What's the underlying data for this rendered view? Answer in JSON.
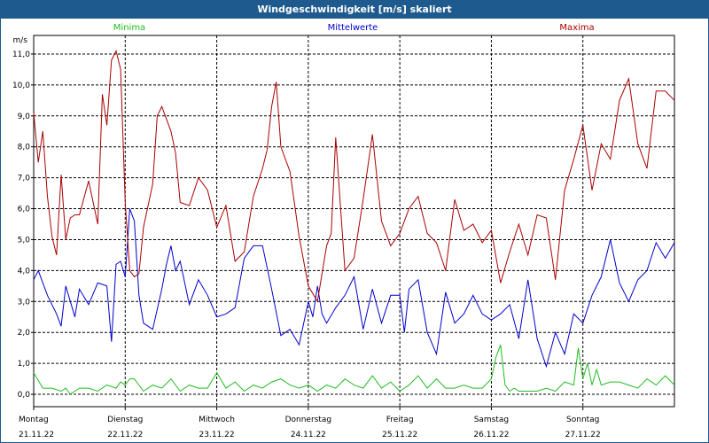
{
  "chart_data": {
    "type": "line",
    "title": "Windgeschwindigkeit [m/s] skaliert",
    "ylabel": "m/s",
    "ylim": [
      -0.4,
      11.6
    ],
    "yticks": [
      "0,0",
      "1,0",
      "2,0",
      "3,0",
      "4,0",
      "5,0",
      "6,0",
      "7,0",
      "8,0",
      "9,0",
      "10,0",
      "11,0"
    ],
    "xlim": [
      0,
      7
    ],
    "days": [
      {
        "name": "Montag",
        "date": "21.11.22"
      },
      {
        "name": "Dienstag",
        "date": "22.11.22"
      },
      {
        "name": "Mittwoch",
        "date": "23.11.22"
      },
      {
        "name": "Donnerstag",
        "date": "24.11.22"
      },
      {
        "name": "Freitag",
        "date": "25.11.22"
      },
      {
        "name": "Samstag",
        "date": "26.11.22"
      },
      {
        "name": "Sonntag",
        "date": "27.11.22"
      }
    ],
    "series": [
      {
        "name": "Minima",
        "color": "#22bb22",
        "x": [
          0,
          0.1,
          0.2,
          0.3,
          0.35,
          0.4,
          0.5,
          0.6,
          0.7,
          0.8,
          0.9,
          0.95,
          1,
          1.05,
          1.1,
          1.2,
          1.3,
          1.4,
          1.5,
          1.6,
          1.7,
          1.8,
          1.9,
          2,
          2.1,
          2.2,
          2.3,
          2.4,
          2.5,
          2.6,
          2.7,
          2.8,
          2.9,
          3,
          3.1,
          3.2,
          3.3,
          3.4,
          3.5,
          3.6,
          3.7,
          3.8,
          3.9,
          4,
          4.1,
          4.2,
          4.3,
          4.4,
          4.5,
          4.6,
          4.7,
          4.8,
          4.9,
          5,
          5.05,
          5.1,
          5.15,
          5.2,
          5.25,
          5.3,
          5.4,
          5.5,
          5.6,
          5.7,
          5.8,
          5.9,
          5.95,
          6,
          6.05,
          6.1,
          6.15,
          6.2,
          6.3,
          6.4,
          6.5,
          6.6,
          6.7,
          6.8,
          6.9,
          7
        ],
        "values": [
          0.7,
          0.2,
          0.2,
          0.1,
          0.2,
          0.0,
          0.2,
          0.2,
          0.1,
          0.3,
          0.2,
          0.4,
          0.3,
          0.5,
          0.5,
          0.1,
          0.3,
          0.2,
          0.5,
          0.1,
          0.3,
          0.2,
          0.2,
          0.7,
          0.2,
          0.4,
          0.1,
          0.3,
          0.2,
          0.4,
          0.5,
          0.3,
          0.2,
          0.3,
          0.1,
          0.3,
          0.2,
          0.5,
          0.3,
          0.2,
          0.6,
          0.2,
          0.4,
          0.1,
          0.3,
          0.6,
          0.2,
          0.5,
          0.2,
          0.2,
          0.3,
          0.2,
          0.2,
          0.5,
          1.2,
          1.6,
          0.3,
          0.1,
          0.2,
          0.1,
          0.1,
          0.1,
          0.2,
          0.1,
          0.4,
          0.3,
          1.5,
          0.5,
          1.0,
          0.3,
          0.8,
          0.3,
          0.4,
          0.4,
          0.3,
          0.2,
          0.5,
          0.3,
          0.6,
          0.3
        ]
      },
      {
        "name": "Mittelwerte",
        "color": "#0000cc",
        "x": [
          0,
          0.05,
          0.15,
          0.25,
          0.3,
          0.35,
          0.45,
          0.5,
          0.6,
          0.7,
          0.8,
          0.85,
          0.9,
          0.95,
          1,
          1.05,
          1.1,
          1.15,
          1.2,
          1.3,
          1.4,
          1.45,
          1.5,
          1.55,
          1.6,
          1.7,
          1.8,
          1.9,
          2,
          2.1,
          2.2,
          2.3,
          2.4,
          2.5,
          2.6,
          2.7,
          2.8,
          2.9,
          3,
          3.05,
          3.1,
          3.15,
          3.2,
          3.3,
          3.4,
          3.5,
          3.6,
          3.7,
          3.8,
          3.9,
          4,
          4.05,
          4.1,
          4.2,
          4.3,
          4.4,
          4.5,
          4.6,
          4.7,
          4.8,
          4.9,
          5,
          5.1,
          5.2,
          5.3,
          5.4,
          5.5,
          5.6,
          5.7,
          5.8,
          5.9,
          6,
          6.1,
          6.2,
          6.3,
          6.4,
          6.5,
          6.6,
          6.7,
          6.8,
          6.9,
          7
        ],
        "values": [
          3.7,
          4.0,
          3.2,
          2.6,
          2.2,
          3.5,
          2.5,
          3.4,
          2.9,
          3.6,
          3.5,
          1.7,
          4.2,
          4.3,
          3.8,
          6.0,
          5.6,
          3.2,
          2.3,
          2.1,
          3.4,
          4.2,
          4.8,
          4.0,
          4.3,
          2.9,
          3.7,
          3.2,
          2.5,
          2.6,
          2.8,
          4.4,
          4.8,
          4.8,
          3.4,
          1.9,
          2.1,
          1.6,
          3.0,
          2.5,
          3.5,
          2.6,
          2.3,
          2.8,
          3.2,
          3.8,
          2.1,
          3.4,
          2.3,
          3.2,
          3.2,
          2.0,
          3.4,
          3.7,
          2.0,
          1.3,
          3.3,
          2.3,
          2.6,
          3.2,
          2.6,
          2.4,
          2.6,
          2.9,
          1.8,
          3.7,
          1.8,
          0.9,
          2.0,
          1.3,
          2.6,
          2.3,
          3.2,
          3.8,
          5.0,
          3.6,
          3.0,
          3.7,
          4.0,
          4.9,
          4.4,
          4.9
        ]
      },
      {
        "name": "Maxima",
        "color": "#aa0000",
        "x": [
          0,
          0.05,
          0.1,
          0.15,
          0.2,
          0.25,
          0.3,
          0.35,
          0.4,
          0.45,
          0.5,
          0.6,
          0.7,
          0.75,
          0.8,
          0.85,
          0.9,
          0.95,
          1,
          1.05,
          1.1,
          1.15,
          1.2,
          1.3,
          1.35,
          1.4,
          1.5,
          1.55,
          1.6,
          1.7,
          1.8,
          1.9,
          2,
          2.1,
          2.2,
          2.3,
          2.4,
          2.5,
          2.55,
          2.6,
          2.65,
          2.7,
          2.8,
          2.9,
          3,
          3.1,
          3.2,
          3.25,
          3.3,
          3.4,
          3.5,
          3.6,
          3.7,
          3.8,
          3.9,
          4,
          4.1,
          4.2,
          4.3,
          4.4,
          4.5,
          4.6,
          4.7,
          4.8,
          4.9,
          5,
          5.1,
          5.2,
          5.3,
          5.4,
          5.5,
          5.6,
          5.7,
          5.8,
          5.9,
          6,
          6.1,
          6.2,
          6.3,
          6.4,
          6.5,
          6.6,
          6.7,
          6.8,
          6.9,
          7
        ],
        "values": [
          9.1,
          7.5,
          8.5,
          6.4,
          5.1,
          4.5,
          7.1,
          5.0,
          5.7,
          5.8,
          5.8,
          6.9,
          5.5,
          9.7,
          8.7,
          10.8,
          11.1,
          10.5,
          6.2,
          4.0,
          3.8,
          3.9,
          5.4,
          6.8,
          9.0,
          9.3,
          8.5,
          7.8,
          6.2,
          6.1,
          7.0,
          6.6,
          5.4,
          6.1,
          4.3,
          4.6,
          6.4,
          7.3,
          7.9,
          9.3,
          10.1,
          8.0,
          7.2,
          5.1,
          3.5,
          3.0,
          4.8,
          5.2,
          8.3,
          4.0,
          4.4,
          6.3,
          8.4,
          5.6,
          4.8,
          5.2,
          6.0,
          6.4,
          5.2,
          4.9,
          4.0,
          6.3,
          5.3,
          5.5,
          4.9,
          5.3,
          3.6,
          4.6,
          5.5,
          4.5,
          5.8,
          5.7,
          3.7,
          6.6,
          7.6,
          8.7,
          6.6,
          8.1,
          7.6,
          9.5,
          10.2,
          8.1,
          7.3,
          9.8,
          9.8,
          9.5
        ]
      }
    ]
  }
}
